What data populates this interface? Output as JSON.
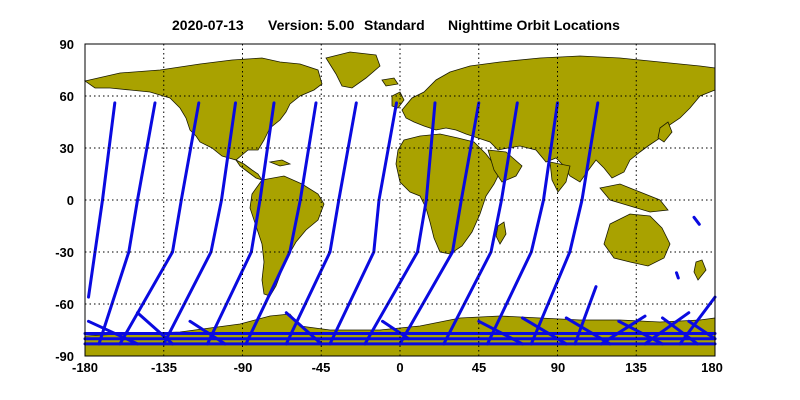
{
  "header": {
    "date": "2020-07-13",
    "version": "Version: 5.00",
    "product": "Standard",
    "subject": "Nighttime Orbit Locations"
  },
  "axes": {
    "x_tick_labels": [
      "-180",
      "-135",
      "-90",
      "-45",
      "0",
      "45",
      "90",
      "135",
      "180"
    ],
    "y_tick_labels": [
      "90",
      "60",
      "30",
      "0",
      "-30",
      "-60",
      "-90"
    ]
  },
  "colors": {
    "land": "#a9a200",
    "coast": "#1a1a00",
    "orbit": "#0a0ae0",
    "grid": "#000000"
  },
  "chart_data": {
    "type": "scatter",
    "title": "2020-07-13    Version: 5.00  Standard     Nighttime Orbit Locations",
    "xlim": [
      -180,
      180
    ],
    "ylim": [
      -90,
      90
    ],
    "x_ticks": [
      -180,
      -135,
      -90,
      -45,
      0,
      45,
      90,
      135,
      180
    ],
    "y_ticks": [
      -90,
      -60,
      -30,
      0,
      30,
      60,
      90
    ],
    "grid": true,
    "series": [
      {
        "values": [
          [
            -178,
            -56
          ],
          [
            -170,
            0
          ],
          [
            -163,
            56
          ]
        ]
      },
      {
        "values": [
          [
            -172,
            -83
          ],
          [
            -155,
            -30
          ],
          [
            -150,
            0
          ],
          [
            -140,
            56
          ]
        ]
      },
      {
        "values": [
          [
            -160,
            -83
          ],
          [
            -130,
            -30
          ],
          [
            -125,
            0
          ],
          [
            -115,
            56
          ]
        ]
      },
      {
        "values": [
          [
            -135,
            -83
          ],
          [
            -108,
            -30
          ],
          [
            -102,
            0
          ],
          [
            -94,
            56
          ]
        ]
      },
      {
        "values": [
          [
            -110,
            -83
          ],
          [
            -85,
            -30
          ],
          [
            -80,
            0
          ],
          [
            -72,
            56
          ]
        ]
      },
      {
        "values": [
          [
            -88,
            -83
          ],
          [
            -63,
            -30
          ],
          [
            -57,
            0
          ],
          [
            -48,
            56
          ]
        ]
      },
      {
        "values": [
          [
            -65,
            -83
          ],
          [
            -40,
            -30
          ],
          [
            -35,
            0
          ],
          [
            -25,
            56
          ]
        ]
      },
      {
        "values": [
          [
            -40,
            -83
          ],
          [
            -15,
            -30
          ],
          [
            -12,
            0
          ],
          [
            -2,
            56
          ]
        ]
      },
      {
        "values": [
          [
            -20,
            -83
          ],
          [
            10,
            -30
          ],
          [
            15,
            0
          ],
          [
            20,
            56
          ]
        ]
      },
      {
        "values": [
          [
            0,
            -83
          ],
          [
            30,
            -30
          ],
          [
            35,
            0
          ],
          [
            45,
            56
          ]
        ]
      },
      {
        "values": [
          [
            25,
            -83
          ],
          [
            52,
            -30
          ],
          [
            58,
            0
          ],
          [
            67,
            56
          ]
        ]
      },
      {
        "values": [
          [
            50,
            -83
          ],
          [
            75,
            -30
          ],
          [
            82,
            0
          ],
          [
            90,
            56
          ]
        ]
      },
      {
        "values": [
          [
            75,
            -83
          ],
          [
            97,
            -30
          ],
          [
            104,
            0
          ],
          [
            113,
            56
          ]
        ]
      },
      {
        "values": [
          [
            100,
            -83
          ],
          [
            112,
            -50
          ]
        ]
      },
      {
        "values": [
          [
            -178,
            -70
          ],
          [
            -150,
            -83
          ]
        ]
      },
      {
        "values": [
          [
            -150,
            -65
          ],
          [
            -130,
            -83
          ]
        ]
      },
      {
        "values": [
          [
            -120,
            -70
          ],
          [
            -100,
            -83
          ]
        ]
      },
      {
        "values": [
          [
            -65,
            -65
          ],
          [
            -45,
            -83
          ]
        ]
      },
      {
        "values": [
          [
            -10,
            -70
          ],
          [
            5,
            -80
          ]
        ]
      },
      {
        "values": [
          [
            45,
            -70
          ],
          [
            70,
            -83
          ]
        ]
      },
      {
        "values": [
          [
            70,
            -68
          ],
          [
            95,
            -83
          ]
        ]
      },
      {
        "values": [
          [
            95,
            -68
          ],
          [
            120,
            -83
          ]
        ]
      },
      {
        "values": [
          [
            125,
            -70
          ],
          [
            150,
            -83
          ]
        ]
      },
      {
        "values": [
          [
            150,
            -68
          ],
          [
            170,
            -83
          ]
        ]
      },
      {
        "values": [
          [
            165,
            -70
          ],
          [
            180,
            -80
          ]
        ]
      },
      {
        "values": [
          [
            160,
            -83
          ],
          [
            180,
            -56
          ]
        ]
      },
      {
        "values": [
          [
            140,
            -83
          ],
          [
            165,
            -65
          ]
        ]
      },
      {
        "values": [
          [
            115,
            -83
          ],
          [
            140,
            -67
          ]
        ]
      },
      {
        "values": [
          [
            168,
            -10
          ],
          [
            171,
            -14
          ]
        ]
      },
      {
        "values": [
          [
            158,
            -42
          ],
          [
            159,
            -45
          ]
        ]
      },
      {
        "values": [
          [
            -180,
            -80
          ],
          [
            180,
            -80
          ]
        ]
      },
      {
        "values": [
          [
            -180,
            -83
          ],
          [
            180,
            -83
          ]
        ]
      },
      {
        "values": [
          [
            -180,
            -77
          ],
          [
            180,
            -77
          ]
        ]
      }
    ]
  }
}
